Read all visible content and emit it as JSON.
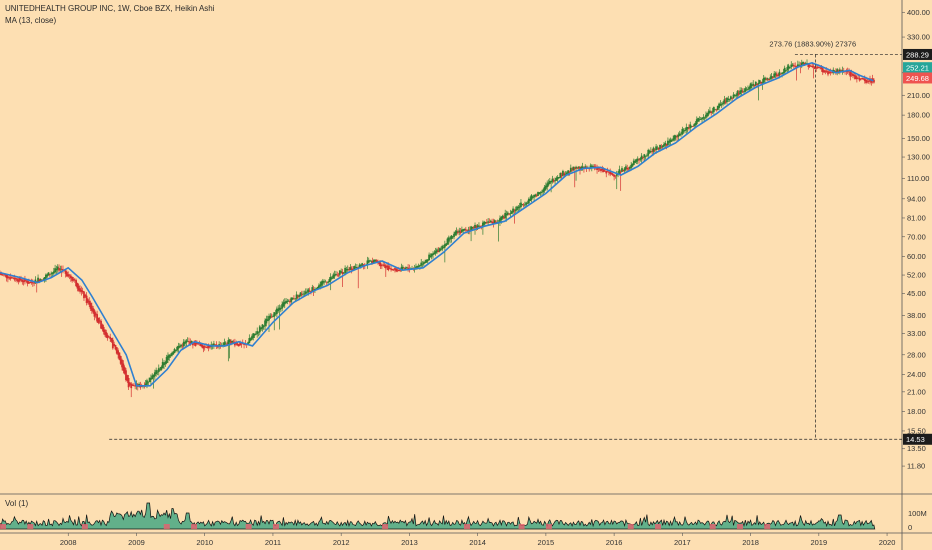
{
  "header": {
    "symbol_line": "UNITEDHEALTH GROUP INC, 1W, Cboe BZX, Heikin Ashi",
    "ma_line": "MA (13, close)"
  },
  "volume_pane": {
    "label": "Vol (1)",
    "ticks": [
      "100M",
      "0"
    ]
  },
  "colors": {
    "background": "#fddfb2",
    "up_candle": "#2e7d32",
    "down_candle": "#d32f2f",
    "ma_line": "#2f80d1",
    "volume_fill": "#62b08a",
    "volume_down_fill": "#e8606e",
    "tag_dark": "#1c1c1c",
    "tag_green": "#26a69a",
    "tag_red": "#ef5350"
  },
  "annotations": {
    "measure_label": "273.76 (1883.90%) 27376"
  },
  "chart_data": {
    "type": "line",
    "title": "UNITEDHEALTH GROUP INC, 1W, Cboe BZX, Heikin Ashi",
    "series": [
      {
        "name": "MA (13, close)",
        "x": [
          2007.0,
          2007.3,
          2007.55,
          2007.75,
          2008.0,
          2008.2,
          2008.35,
          2008.6,
          2008.85,
          2009.0,
          2009.2,
          2009.45,
          2009.65,
          2009.85,
          2010.1,
          2010.3,
          2010.5,
          2010.7,
          2011.0,
          2011.3,
          2011.6,
          2011.8,
          2012.1,
          2012.35,
          2012.6,
          2012.9,
          2013.2,
          2013.5,
          2013.8,
          2014.1,
          2014.4,
          2014.7,
          2015.0,
          2015.3,
          2015.55,
          2015.8,
          2016.1,
          2016.35,
          2016.6,
          2016.9,
          2017.2,
          2017.5,
          2017.8,
          2018.1,
          2018.4,
          2018.7,
          2018.9,
          2019.05,
          2019.25,
          2019.45,
          2019.6,
          2019.8
        ],
        "values": [
          53,
          51,
          49,
          51,
          55,
          50,
          44,
          35,
          28,
          22,
          22,
          25,
          29,
          31,
          30,
          30,
          31,
          30,
          36,
          42,
          46,
          48,
          53,
          56,
          58,
          54,
          55,
          62,
          72,
          76,
          79,
          88,
          98,
          113,
          119,
          120,
          113,
          121,
          134,
          145,
          164,
          182,
          205,
          225,
          240,
          262,
          270,
          262,
          250,
          255,
          245,
          235
        ]
      }
    ],
    "candle_extremes": {
      "high": 288.29,
      "low": 14.53,
      "last_close": 249.68,
      "prev_tag": 252.21
    },
    "volume_series_shape": "spiky, peak around 2009",
    "x_axis": {
      "labels": [
        "2008",
        "2009",
        "2010",
        "2011",
        "2012",
        "2013",
        "2014",
        "2015",
        "2016",
        "2017",
        "2018",
        "2019",
        "2020"
      ],
      "range": [
        2007.0,
        2020.6
      ]
    },
    "y_axis": {
      "scale": "log",
      "range": [
        9.5,
        440
      ],
      "ticks": [
        "400.00",
        "330.00",
        "250.00",
        "210.00",
        "180.00",
        "150.00",
        "130.00",
        "110.00",
        "94.00",
        "81.00",
        "70.00",
        "60.00",
        "52.00",
        "45.00",
        "38.00",
        "33.00",
        "28.00",
        "24.00",
        "21.00",
        "18.00",
        "15.50",
        "13.50",
        "11.80"
      ],
      "tags": [
        "288.29",
        "252.21",
        "249.68",
        "14.53"
      ]
    },
    "grid": false,
    "legend": "top-left"
  }
}
